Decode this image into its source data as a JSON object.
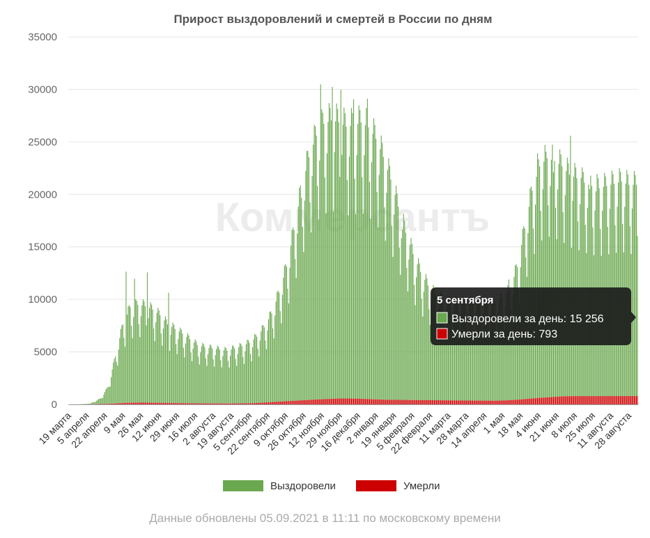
{
  "chart_data": {
    "type": "bar",
    "stacked": true,
    "title": "Прирост выздоровлений и смертей в России по дням",
    "ylim": [
      0,
      35000
    ],
    "yticks": [
      "0",
      "5000",
      "10000",
      "15000",
      "20000",
      "25000",
      "30000",
      "35000"
    ],
    "xtick_labels": [
      "19 марта",
      "5 апреля",
      "22 апреля",
      "9 мая",
      "26 мая",
      "12 июня",
      "29 июня",
      "16 июля",
      "2 августа",
      "19 августа",
      "5 сентября",
      "22 сентября",
      "9 октября",
      "26 октября",
      "12 ноября",
      "29 ноября",
      "16 декабря",
      "2 января",
      "19 января",
      "5 февраля",
      "22 февраля",
      "11 марта",
      "28 марта",
      "14 апреля",
      "1 мая",
      "18 мая",
      "4 июня",
      "21 июня",
      "8 июля",
      "25 июля",
      "11 августа",
      "28 августа"
    ],
    "day_count": 536,
    "series": [
      {
        "name": "Выздоровели",
        "color": "#6aa84f",
        "anchors": [
          [
            0,
            0
          ],
          [
            10,
            10
          ],
          [
            20,
            60
          ],
          [
            30,
            500
          ],
          [
            37,
            1500
          ],
          [
            44,
            4200
          ],
          [
            51,
            7000
          ],
          [
            58,
            8500
          ],
          [
            65,
            8700
          ],
          [
            72,
            8600
          ],
          [
            79,
            8300
          ],
          [
            86,
            7800
          ],
          [
            93,
            7000
          ],
          [
            100,
            6600
          ],
          [
            107,
            6200
          ],
          [
            114,
            5700
          ],
          [
            121,
            5200
          ],
          [
            128,
            5000
          ],
          [
            135,
            4900
          ],
          [
            142,
            4800
          ],
          [
            149,
            4700
          ],
          [
            156,
            4900
          ],
          [
            163,
            5100
          ],
          [
            170,
            5400
          ],
          [
            177,
            5900
          ],
          [
            184,
            6700
          ],
          [
            191,
            7900
          ],
          [
            198,
            9700
          ],
          [
            205,
            12000
          ],
          [
            212,
            15200
          ],
          [
            219,
            18800
          ],
          [
            226,
            21600
          ],
          [
            233,
            23500
          ],
          [
            240,
            24500
          ],
          [
            247,
            24800
          ],
          [
            254,
            24600
          ],
          [
            261,
            24200
          ],
          [
            268,
            24300
          ],
          [
            275,
            24600
          ],
          [
            282,
            24200
          ],
          [
            289,
            23200
          ],
          [
            296,
            21600
          ],
          [
            303,
            19600
          ],
          [
            310,
            17200
          ],
          [
            317,
            14900
          ],
          [
            324,
            13000
          ],
          [
            331,
            11400
          ],
          [
            338,
            10200
          ],
          [
            345,
            9400
          ],
          [
            352,
            9000
          ],
          [
            359,
            8800
          ],
          [
            366,
            8700
          ],
          [
            373,
            8700
          ],
          [
            380,
            8800
          ],
          [
            387,
            8800
          ],
          [
            394,
            8500
          ],
          [
            401,
            8800
          ],
          [
            408,
            9100
          ],
          [
            415,
            9800
          ],
          [
            422,
            11800
          ],
          [
            429,
            15200
          ],
          [
            436,
            18500
          ],
          [
            443,
            20600
          ],
          [
            450,
            21300
          ],
          [
            457,
            21000
          ],
          [
            464,
            20500
          ],
          [
            471,
            19700
          ],
          [
            478,
            19400
          ],
          [
            485,
            19000
          ],
          [
            492,
            18700
          ],
          [
            499,
            18500
          ],
          [
            506,
            18700
          ],
          [
            513,
            18900
          ],
          [
            520,
            19100
          ],
          [
            527,
            18800
          ],
          [
            535,
            18800
          ]
        ],
        "peaks": [
          [
            54,
            12500
          ],
          [
            62,
            11800
          ],
          [
            74,
            12400
          ],
          [
            94,
            10500
          ],
          [
            219,
            19300
          ],
          [
            237,
            30000
          ],
          [
            248,
            29700
          ],
          [
            256,
            29400
          ],
          [
            268,
            28500
          ],
          [
            281,
            28600
          ],
          [
            314,
            16200
          ],
          [
            414,
            11500
          ],
          [
            441,
            23300
          ],
          [
            449,
            23400
          ],
          [
            456,
            21400
          ],
          [
            472,
            24800
          ],
          [
            482,
            20800
          ],
          [
            490,
            19700
          ],
          [
            496,
            19500
          ]
        ]
      },
      {
        "name": "Умерли",
        "color": "#cc0000",
        "anchors": [
          [
            0,
            0
          ],
          [
            20,
            5
          ],
          [
            40,
            60
          ],
          [
            55,
            150
          ],
          [
            70,
            170
          ],
          [
            90,
            140
          ],
          [
            110,
            110
          ],
          [
            130,
            90
          ],
          [
            150,
            85
          ],
          [
            170,
            100
          ],
          [
            185,
            180
          ],
          [
            200,
            270
          ],
          [
            215,
            360
          ],
          [
            230,
            450
          ],
          [
            245,
            520
          ],
          [
            255,
            560
          ],
          [
            265,
            560
          ],
          [
            275,
            530
          ],
          [
            285,
            490
          ],
          [
            300,
            440
          ],
          [
            320,
            420
          ],
          [
            340,
            400
          ],
          [
            360,
            380
          ],
          [
            380,
            360
          ],
          [
            400,
            350
          ],
          [
            410,
            370
          ],
          [
            425,
            470
          ],
          [
            440,
            600
          ],
          [
            455,
            700
          ],
          [
            465,
            770
          ],
          [
            475,
            790
          ],
          [
            535,
            793
          ]
        ]
      }
    ],
    "legend": [
      {
        "label": "Выздоровели",
        "color": "#6aa84f"
      },
      {
        "label": "Умерли",
        "color": "#cc0000"
      }
    ],
    "legend_position": "bottom-center",
    "grid": true,
    "tooltip": {
      "title": "5 сентября",
      "recovered_label": "Выздоровели за день: 15 256",
      "deaths_label": "Умерли за день: 793"
    },
    "watermark": "Коммерсантъ"
  },
  "footer": "Данные обновлены 05.09.2021 в 11:11 по московскому времени"
}
